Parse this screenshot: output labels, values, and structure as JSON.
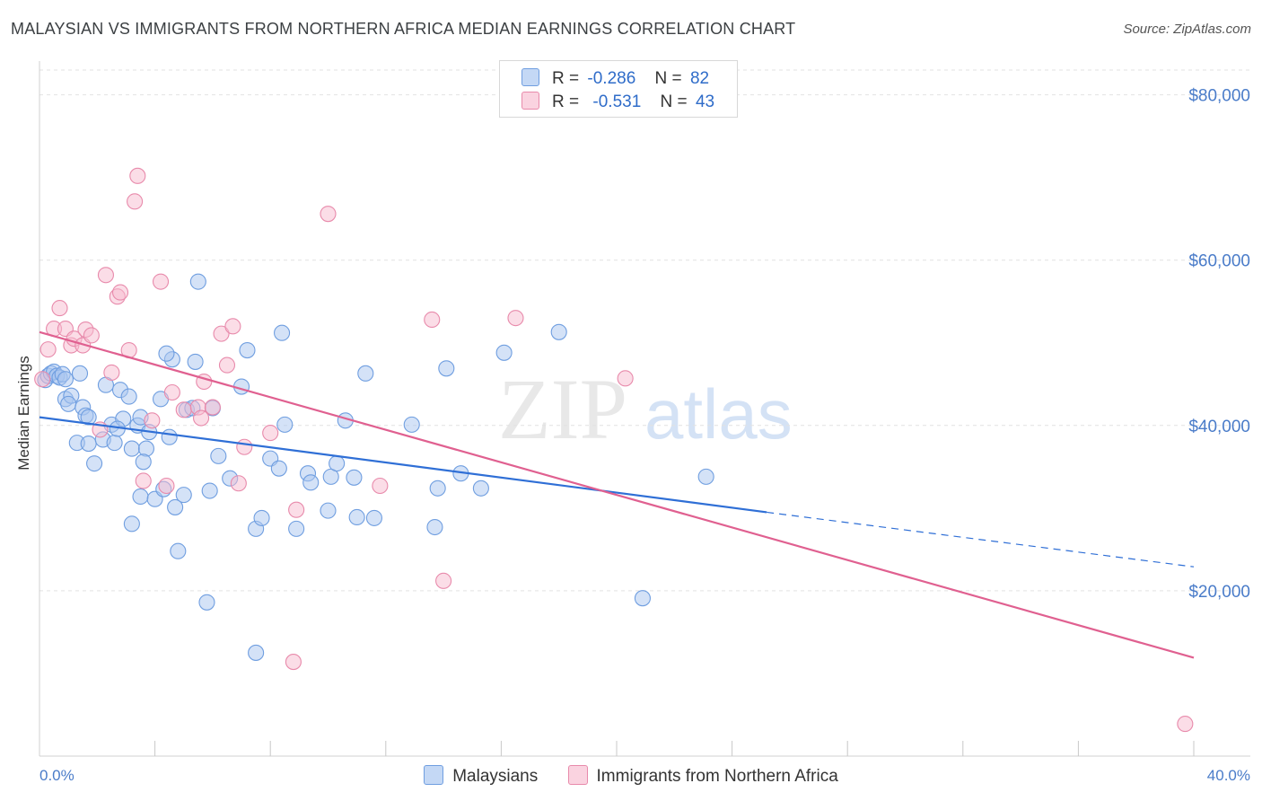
{
  "title": "MALAYSIAN VS IMMIGRANTS FROM NORTHERN AFRICA MEDIAN EARNINGS CORRELATION CHART",
  "source": "Source: ZipAtlas.com",
  "watermark": {
    "zip": "ZIP",
    "atlas": "atlas"
  },
  "legend": {
    "r_label": "R =",
    "n_label": "N =",
    "rows": [
      {
        "r": "-0.286",
        "n": "82",
        "color": "#a9c6f0",
        "border": "#6f9ee0"
      },
      {
        "r": "-0.531",
        "n": "43",
        "color": "#f7bcd0",
        "border": "#e88aab"
      }
    ]
  },
  "bottom_legend": [
    "Malaysians",
    "Immigrants from Northern Africa"
  ],
  "chart_data": {
    "type": "scatter",
    "ylabel": "Median Earnings",
    "xlim": [
      0,
      40
    ],
    "ylim": [
      0,
      83000
    ],
    "x_tick_labels": {
      "left": "0.0%",
      "right": "40.0%"
    },
    "y_ticks": [
      {
        "value": 20000,
        "label": "$20,000"
      },
      {
        "value": 40000,
        "label": "$40,000"
      },
      {
        "value": 60000,
        "label": "$60,000"
      },
      {
        "value": 80000,
        "label": "$80,000"
      }
    ],
    "grid": true,
    "series": [
      {
        "name": "Malaysians",
        "color": "#6f9ee0",
        "fill": "#a9c6f0",
        "trend": {
          "x0": 0,
          "y0": 41000,
          "x1": 25.2,
          "y1": 29500,
          "dash_to_x": 40,
          "dash_to_y": 22900,
          "color": "#2f6fd6"
        },
        "points": [
          [
            0.2,
            45500
          ],
          [
            0.3,
            46000
          ],
          [
            0.4,
            46300
          ],
          [
            0.5,
            46500
          ],
          [
            0.6,
            46000
          ],
          [
            0.7,
            45800
          ],
          [
            0.8,
            46200
          ],
          [
            0.9,
            45600
          ],
          [
            1.4,
            46300
          ],
          [
            0.9,
            43200
          ],
          [
            1.1,
            43600
          ],
          [
            1.0,
            42600
          ],
          [
            1.5,
            42200
          ],
          [
            1.6,
            41200
          ],
          [
            1.7,
            41000
          ],
          [
            1.3,
            37900
          ],
          [
            1.7,
            37800
          ],
          [
            1.9,
            35400
          ],
          [
            2.3,
            44900
          ],
          [
            2.2,
            38300
          ],
          [
            2.5,
            40100
          ],
          [
            2.6,
            37900
          ],
          [
            2.8,
            44300
          ],
          [
            2.9,
            40800
          ],
          [
            3.1,
            43500
          ],
          [
            3.4,
            40000
          ],
          [
            3.5,
            41000
          ],
          [
            3.2,
            37200
          ],
          [
            3.7,
            37200
          ],
          [
            3.8,
            39200
          ],
          [
            3.6,
            35600
          ],
          [
            3.5,
            31400
          ],
          [
            4.0,
            31100
          ],
          [
            4.6,
            48000
          ],
          [
            4.2,
            43200
          ],
          [
            4.5,
            38600
          ],
          [
            4.3,
            32300
          ],
          [
            4.7,
            30100
          ],
          [
            4.8,
            24800
          ],
          [
            5.0,
            31600
          ],
          [
            5.1,
            41900
          ],
          [
            5.3,
            42100
          ],
          [
            5.4,
            47700
          ],
          [
            5.5,
            57400
          ],
          [
            5.9,
            32100
          ],
          [
            6.0,
            42100
          ],
          [
            6.2,
            36300
          ],
          [
            6.6,
            33600
          ],
          [
            7.0,
            44700
          ],
          [
            7.2,
            49100
          ],
          [
            7.5,
            27500
          ],
          [
            7.7,
            28800
          ],
          [
            8.0,
            36000
          ],
          [
            8.3,
            34800
          ],
          [
            8.4,
            51200
          ],
          [
            8.5,
            40100
          ],
          [
            8.9,
            27500
          ],
          [
            9.3,
            34200
          ],
          [
            9.4,
            33100
          ],
          [
            10.0,
            29700
          ],
          [
            10.1,
            33800
          ],
          [
            10.3,
            35400
          ],
          [
            10.6,
            40600
          ],
          [
            10.9,
            33700
          ],
          [
            11.0,
            28900
          ],
          [
            11.3,
            46300
          ],
          [
            11.6,
            28800
          ],
          [
            12.9,
            40100
          ],
          [
            13.7,
            27700
          ],
          [
            13.8,
            32400
          ],
          [
            14.1,
            46900
          ],
          [
            14.6,
            34200
          ],
          [
            15.3,
            32400
          ],
          [
            16.1,
            48800
          ],
          [
            18.0,
            51300
          ],
          [
            20.9,
            19100
          ],
          [
            23.1,
            33800
          ],
          [
            3.2,
            28100
          ],
          [
            5.8,
            18600
          ],
          [
            7.5,
            12500
          ],
          [
            4.4,
            48700
          ],
          [
            2.7,
            39600
          ]
        ]
      },
      {
        "name": "Immigrants from Northern Africa",
        "color": "#e88aab",
        "fill": "#f7bcd0",
        "trend": {
          "x0": 0,
          "y0": 51300,
          "x1": 40,
          "y1": 11900,
          "color": "#e06090"
        },
        "points": [
          [
            0.1,
            45600
          ],
          [
            0.3,
            49200
          ],
          [
            0.5,
            51700
          ],
          [
            0.7,
            54200
          ],
          [
            0.9,
            51700
          ],
          [
            1.1,
            49700
          ],
          [
            1.2,
            50500
          ],
          [
            1.5,
            49700
          ],
          [
            1.6,
            51600
          ],
          [
            1.8,
            50900
          ],
          [
            2.1,
            39500
          ],
          [
            2.3,
            58200
          ],
          [
            2.5,
            46400
          ],
          [
            2.7,
            55600
          ],
          [
            2.8,
            56100
          ],
          [
            3.1,
            49100
          ],
          [
            3.4,
            70200
          ],
          [
            3.3,
            67100
          ],
          [
            3.6,
            33300
          ],
          [
            3.9,
            40600
          ],
          [
            4.2,
            57400
          ],
          [
            4.4,
            32700
          ],
          [
            4.6,
            44000
          ],
          [
            5.0,
            41900
          ],
          [
            5.5,
            42200
          ],
          [
            5.6,
            40900
          ],
          [
            5.7,
            45300
          ],
          [
            6.0,
            42200
          ],
          [
            6.3,
            51100
          ],
          [
            6.5,
            47300
          ],
          [
            6.7,
            52000
          ],
          [
            6.9,
            33000
          ],
          [
            7.1,
            37400
          ],
          [
            8.0,
            39100
          ],
          [
            8.9,
            29800
          ],
          [
            10.0,
            65600
          ],
          [
            11.8,
            32700
          ],
          [
            13.6,
            52800
          ],
          [
            14.0,
            21200
          ],
          [
            16.5,
            53000
          ],
          [
            8.8,
            11400
          ],
          [
            20.3,
            45700
          ],
          [
            39.7,
            3900
          ]
        ]
      }
    ]
  }
}
